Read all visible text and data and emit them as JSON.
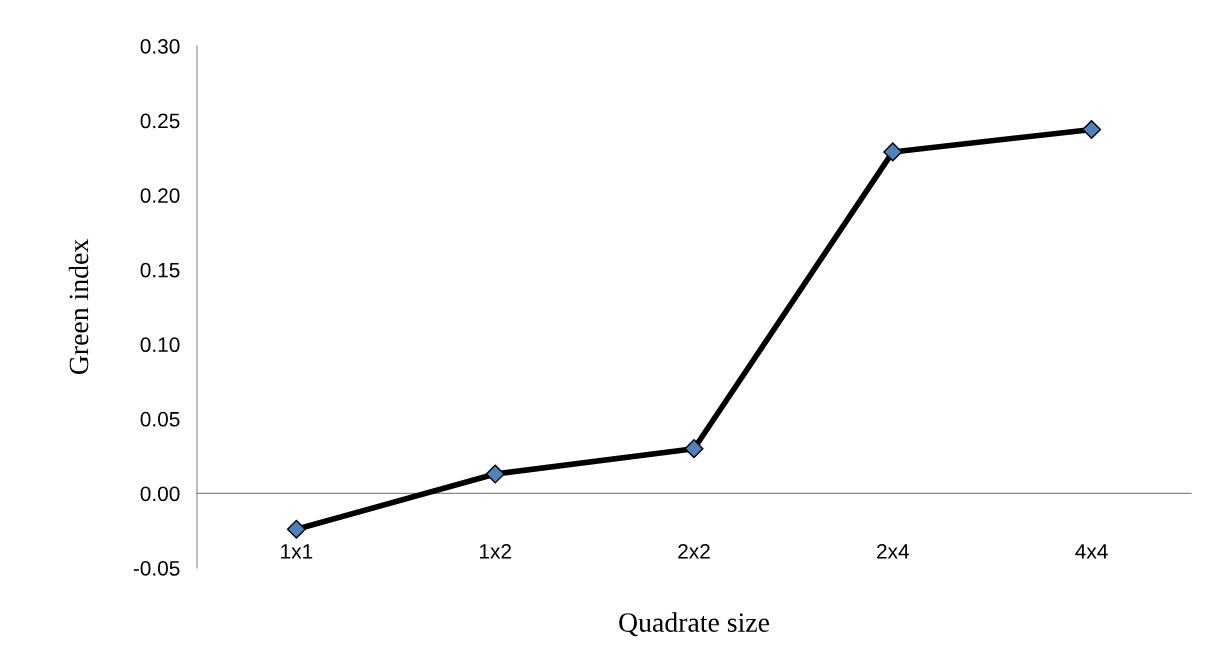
{
  "chart_data": {
    "type": "line",
    "xlabel": "Quadrate size",
    "ylabel": "Green index",
    "categories": [
      "1x1",
      "1x2",
      "2x2",
      "2x4",
      "4x4"
    ],
    "series": [
      {
        "color": "#4f81bd",
        "values": [
          -0.024,
          0.013,
          0.03,
          0.229,
          0.244
        ]
      }
    ],
    "ylim": [
      -0.05,
      0.3
    ],
    "yticks": [
      {
        "value": -0.05,
        "label": "-0.05"
      },
      {
        "value": 0,
        "label": "0.00"
      },
      {
        "value": 0.05,
        "label": "0.05"
      },
      {
        "value": 0.1,
        "label": "0.10"
      },
      {
        "value": 0.15,
        "label": "0.15"
      },
      {
        "value": 0.2,
        "label": "0.20"
      },
      {
        "value": 0.25,
        "label": "0.25"
      },
      {
        "value": 0.3,
        "label": "0.30"
      }
    ],
    "marker": "diamond",
    "line_style": "solid",
    "grid": false,
    "legend": false
  }
}
